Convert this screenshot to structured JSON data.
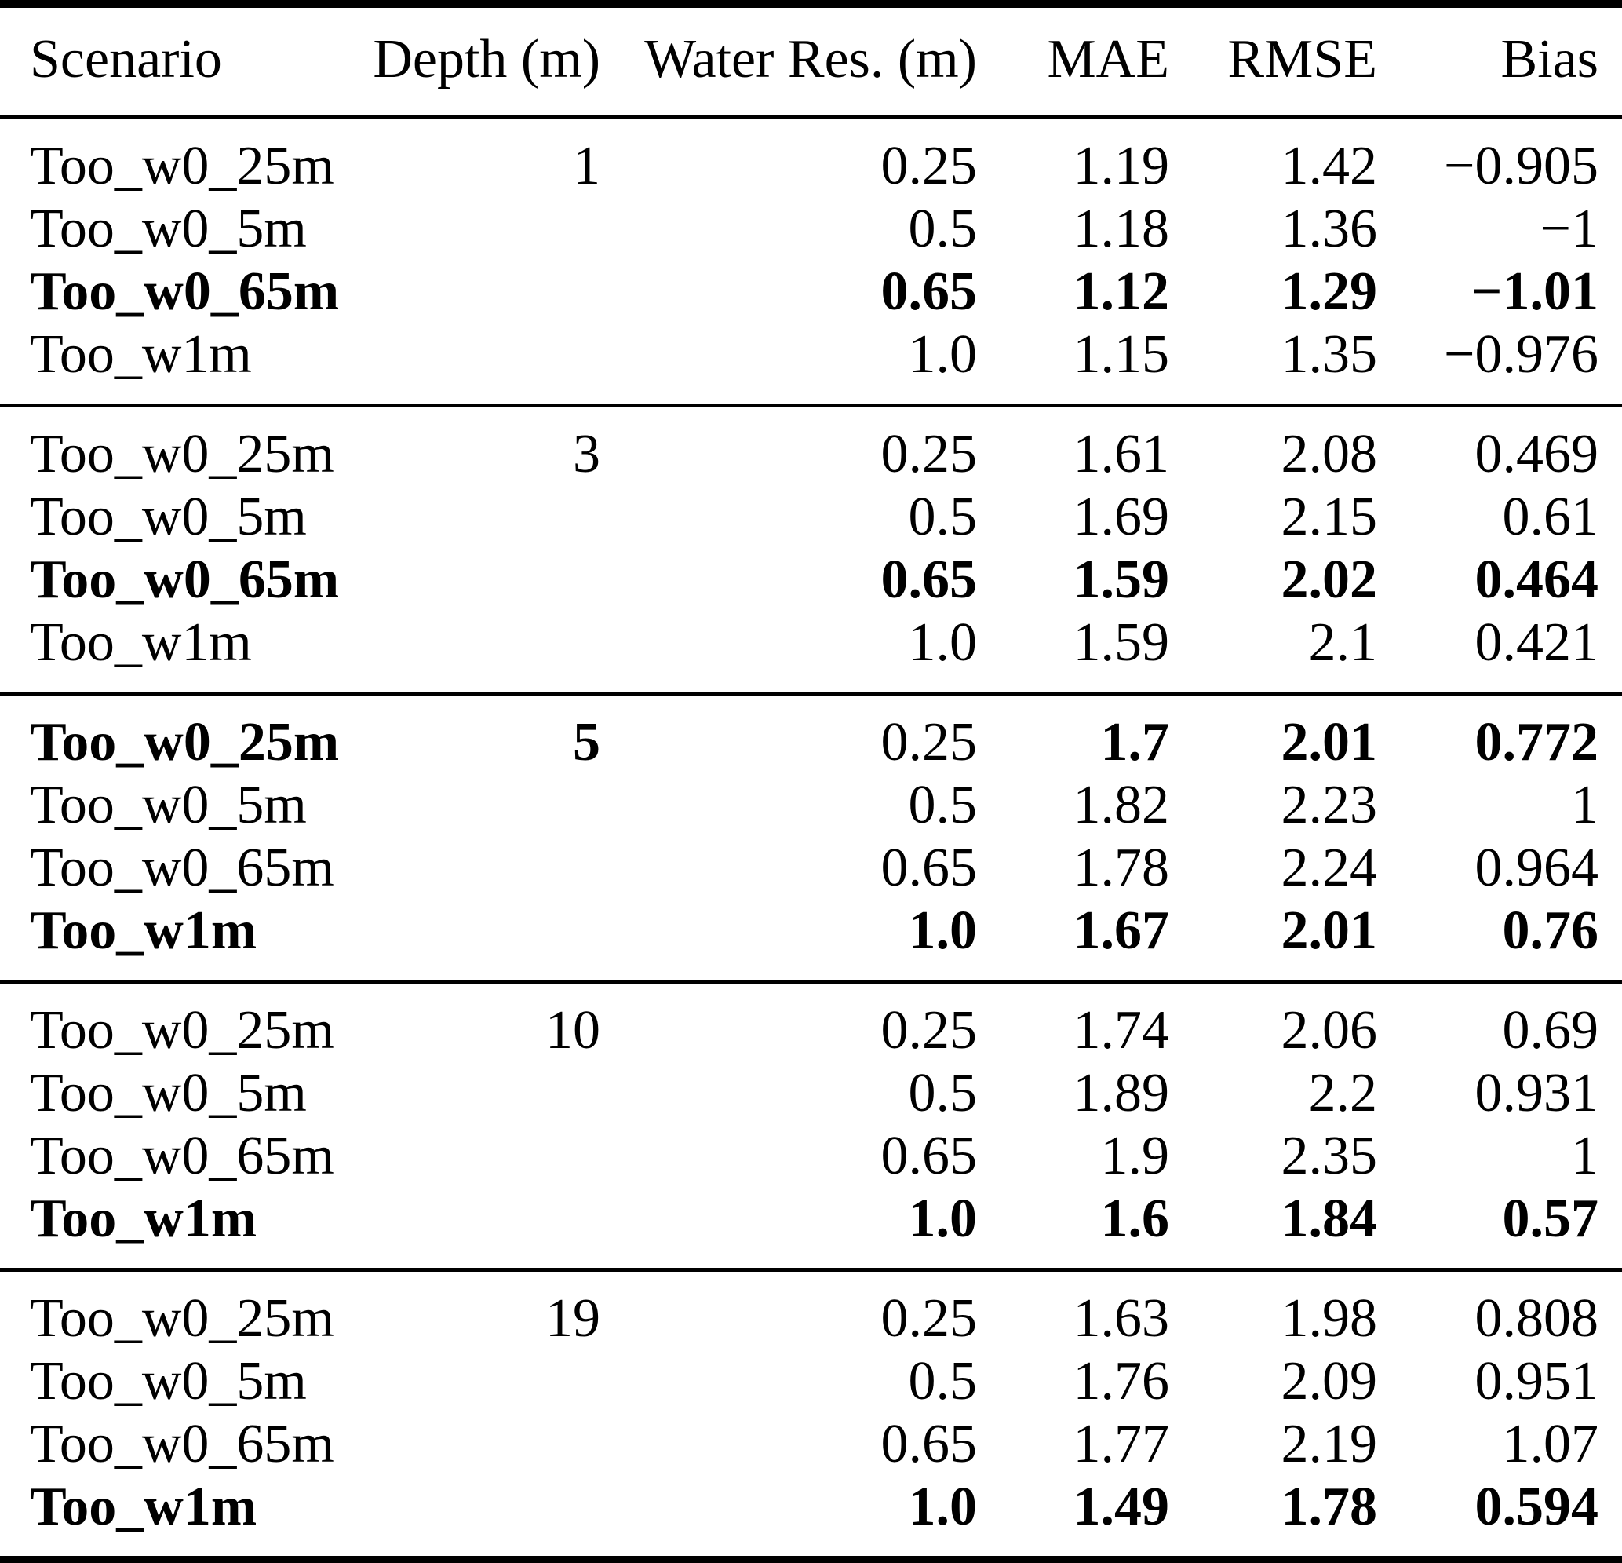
{
  "header": {
    "scenario": "Scenario",
    "depth": "Depth (m)",
    "water_res": "Water Res. (m)",
    "mae": "MAE",
    "rmse": "RMSE",
    "bias": "Bias"
  },
  "rows": [
    {
      "scenario": "Too_w0_25m",
      "depth": "1",
      "water_res": "0.25",
      "mae": "1.19",
      "rmse": "1.42",
      "bias": "−0.905"
    },
    {
      "scenario": "Too_w0_5m",
      "water_res": "0.5",
      "mae": "1.18",
      "rmse": "1.36",
      "bias": "−1"
    },
    {
      "scenario": "Too_w0_65m",
      "water_res": "0.65",
      "mae": "1.12",
      "rmse": "1.29",
      "bias": "−1.01"
    },
    {
      "scenario": "Too_w1m",
      "water_res": "1.0",
      "mae": "1.15",
      "rmse": "1.35",
      "bias": "−0.976"
    },
    {
      "scenario": "Too_w0_25m",
      "depth": "3",
      "water_res": "0.25",
      "mae": "1.61",
      "rmse": "2.08",
      "bias": "0.469"
    },
    {
      "scenario": "Too_w0_5m",
      "water_res": "0.5",
      "mae": "1.69",
      "rmse": "2.15",
      "bias": "0.61"
    },
    {
      "scenario": "Too_w0_65m",
      "water_res": "0.65",
      "mae": "1.59",
      "rmse": "2.02",
      "bias": "0.464"
    },
    {
      "scenario": "Too_w1m",
      "water_res": "1.0",
      "mae": "1.59",
      "rmse": "2.1",
      "bias": "0.421"
    },
    {
      "scenario": "Too_w0_25m",
      "depth": "5",
      "water_res": "0.25",
      "mae": "1.7",
      "rmse": "2.01",
      "bias": "0.772"
    },
    {
      "scenario": "Too_w0_5m",
      "water_res": "0.5",
      "mae": "1.82",
      "rmse": "2.23",
      "bias": "1"
    },
    {
      "scenario": "Too_w0_65m",
      "water_res": "0.65",
      "mae": "1.78",
      "rmse": "2.24",
      "bias": "0.964"
    },
    {
      "scenario": "Too_w1m",
      "water_res": "1.0",
      "mae": "1.67",
      "rmse": "2.01",
      "bias": "0.76"
    },
    {
      "scenario": "Too_w0_25m",
      "depth": "10",
      "water_res": "0.25",
      "mae": "1.74",
      "rmse": "2.06",
      "bias": "0.69"
    },
    {
      "scenario": "Too_w0_5m",
      "water_res": "0.5",
      "mae": "1.89",
      "rmse": "2.2",
      "bias": "0.931"
    },
    {
      "scenario": "Too_w0_65m",
      "water_res": "0.65",
      "mae": "1.9",
      "rmse": "2.35",
      "bias": "1"
    },
    {
      "scenario": "Too_w1m",
      "water_res": "1.0",
      "mae": "1.6",
      "rmse": "1.84",
      "bias": "0.57"
    },
    {
      "scenario": "Too_w0_25m",
      "depth": "19",
      "water_res": "0.25",
      "mae": "1.63",
      "rmse": "1.98",
      "bias": "0.808"
    },
    {
      "scenario": "Too_w0_5m",
      "water_res": "0.5",
      "mae": "1.76",
      "rmse": "2.09",
      "bias": "0.951"
    },
    {
      "scenario": "Too_w0_65m",
      "water_res": "0.65",
      "mae": "1.77",
      "rmse": "2.19",
      "bias": "1.07"
    },
    {
      "scenario": "Too_w1m",
      "water_res": "1.0",
      "mae": "1.49",
      "rmse": "1.78",
      "bias": "0.594"
    }
  ]
}
